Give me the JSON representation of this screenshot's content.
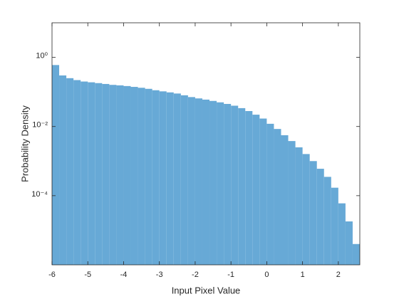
{
  "chart_data": {
    "type": "histogram",
    "xlabel": "Input Pixel Value",
    "ylabel": "Probability Density",
    "bins": [
      -6,
      -5.8,
      -5.6,
      -5.4,
      -5.2,
      -5,
      -4.8,
      -4.6,
      -4.4,
      -4.2,
      -4,
      -3.8,
      -3.6,
      -3.4,
      -3.2,
      -3,
      -2.8,
      -2.6,
      -2.4,
      -2.2,
      -2,
      -1.8,
      -1.6,
      -1.4,
      -1.2,
      -1,
      -0.8,
      -0.6,
      -0.4,
      -0.2,
      0,
      0.2,
      0.4,
      0.6,
      0.8,
      1,
      1.2,
      1.4,
      1.6,
      1.8,
      2,
      2.2,
      2.4,
      2.6
    ],
    "values": [
      0.6,
      0.3,
      0.25,
      0.22,
      0.2,
      0.19,
      0.18,
      0.17,
      0.16,
      0.155,
      0.148,
      0.14,
      0.132,
      0.123,
      0.112,
      0.104,
      0.097,
      0.09,
      0.08,
      0.071,
      0.065,
      0.06,
      0.055,
      0.05,
      0.045,
      0.04,
      0.034,
      0.028,
      0.022,
      0.017,
      0.012,
      0.0085,
      0.0056,
      0.0038,
      0.0025,
      0.0016,
      0.001,
      0.0006,
      0.00035,
      0.00017,
      6e-05,
      1.8e-05,
      4e-06
    ],
    "color": "#67a9d6",
    "xlim": [
      -6,
      2.6
    ],
    "xticks": [
      -6,
      -5,
      -4,
      -3,
      -2,
      -1,
      0,
      1,
      2
    ],
    "ylim": [
      1e-06,
      10
    ],
    "ylog": true,
    "yticks": [
      {
        "value": 0.0001,
        "label": "10⁻⁴"
      },
      {
        "value": 0.01,
        "label": "10⁻²"
      },
      {
        "value": 1,
        "label": "10⁰"
      }
    ]
  }
}
